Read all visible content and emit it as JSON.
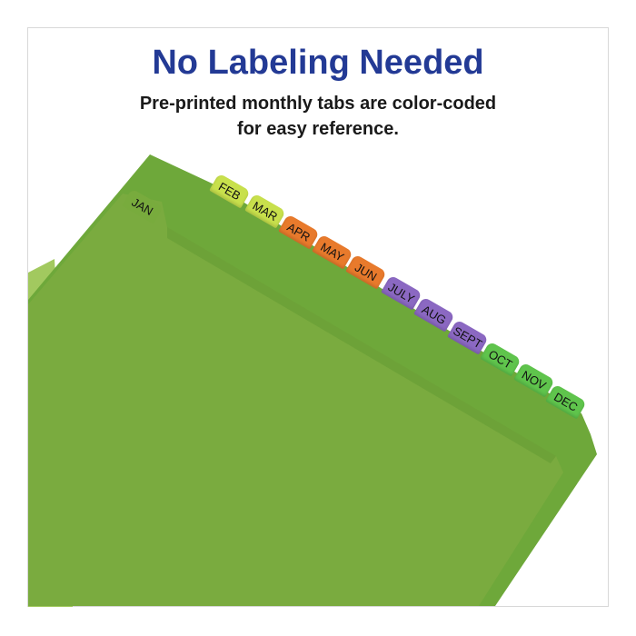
{
  "heading": "No Labeling Needed",
  "subheading_line1": "Pre-printed monthly tabs are color-coded",
  "subheading_line2": "for easy reference.",
  "colors": {
    "heading": "#233a95",
    "folder": "#78ab3d",
    "yellow_green": "#c8e04c",
    "orange": "#e87a2c",
    "purple": "#8b68c2",
    "green": "#5fc44c"
  },
  "tabs": [
    {
      "label": "JAN",
      "color": "folder"
    },
    {
      "label": "FEB",
      "color": "yellow_green"
    },
    {
      "label": "MAR",
      "color": "yellow_green"
    },
    {
      "label": "APR",
      "color": "orange"
    },
    {
      "label": "MAY",
      "color": "orange"
    },
    {
      "label": "JUN",
      "color": "orange"
    },
    {
      "label": "JULY",
      "color": "purple"
    },
    {
      "label": "AUG",
      "color": "purple"
    },
    {
      "label": "SEPT",
      "color": "purple"
    },
    {
      "label": "OCT",
      "color": "green"
    },
    {
      "label": "NOV",
      "color": "green"
    },
    {
      "label": "DEC",
      "color": "green"
    }
  ]
}
